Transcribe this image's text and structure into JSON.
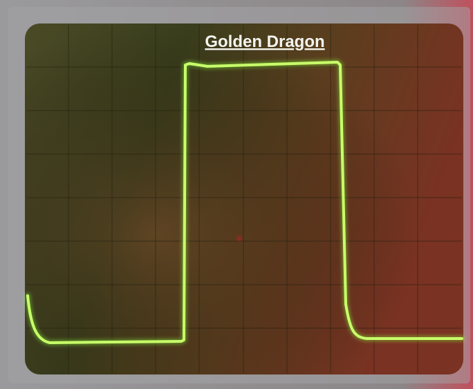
{
  "title": "Golden Dragon"
}
